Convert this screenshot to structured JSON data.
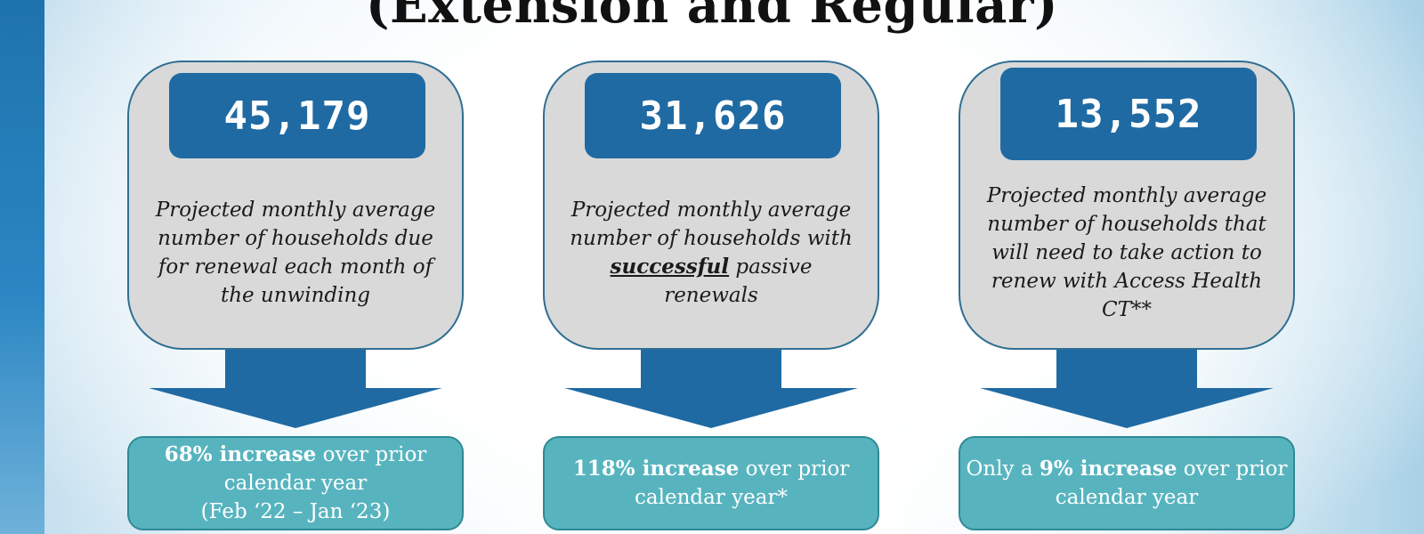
{
  "title": "(Extension and Regular)",
  "colors": {
    "primary_blue": "#1f6aa3",
    "card_gray": "#d9d9d9",
    "result_teal": "#57b4bf"
  },
  "cards": [
    {
      "number": "45,179",
      "description": "Projected monthly average number of households due for renewal each month of the unwinding",
      "result": {
        "lead": "",
        "bold": "68% increase",
        "rest": " over prior calendar year",
        "line2": "(Feb ‘22 – Jan ‘23)"
      }
    },
    {
      "number": "31,626",
      "description_before": "Projected monthly average number of households with ",
      "description_em": "successful",
      "description_after": " passive renewals",
      "result": {
        "lead": "",
        "bold": "118% increase",
        "rest": " over prior calendar year*",
        "line2": ""
      }
    },
    {
      "number": "13,552",
      "description": "Projected monthly average number of households that will need to take action to renew with Access Health CT**",
      "result": {
        "lead": "Only a ",
        "bold": "9% increase",
        "rest": " over prior calendar year",
        "line2": ""
      }
    }
  ]
}
